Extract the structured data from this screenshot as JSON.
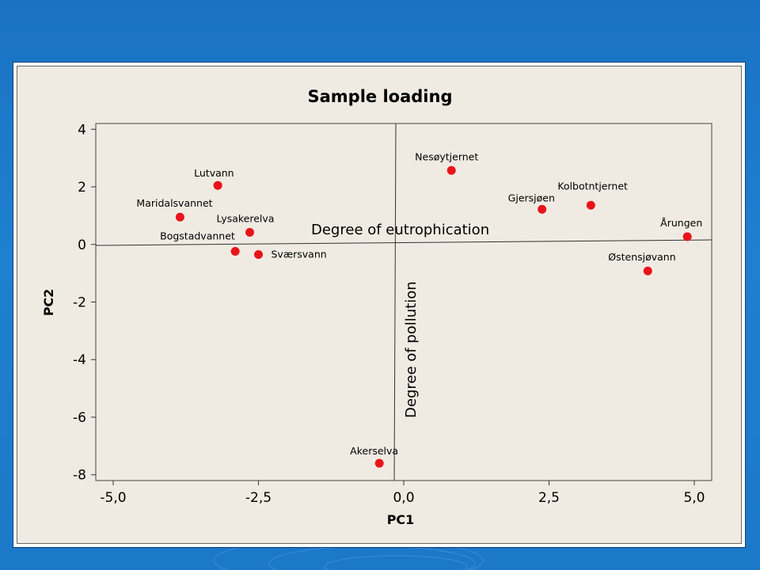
{
  "chart_data": {
    "type": "scatter",
    "title": "Sample loading",
    "xlabel": "PC1",
    "ylabel": "PC2",
    "xlim": [
      -5.3,
      5.3
    ],
    "ylim": [
      -8.2,
      4.2
    ],
    "x_ticks": [
      "-5,0",
      "-2,5",
      "0,0",
      "2,5",
      "5,0"
    ],
    "x_tick_values": [
      -5,
      -2.5,
      0,
      2.5,
      5
    ],
    "y_ticks": [
      "4",
      "2",
      "0",
      "-2",
      "-4",
      "-6",
      "-8"
    ],
    "y_tick_values": [
      4,
      2,
      0,
      -2,
      -4,
      -6,
      -8
    ],
    "grid": false,
    "marker_color": "#e8141a",
    "points": [
      {
        "label": "Lutvann",
        "x": -3.2,
        "y": 2.05
      },
      {
        "label": "Maridalsvannet",
        "x": -3.85,
        "y": 0.95
      },
      {
        "label": "Lysakerelva",
        "x": -2.65,
        "y": 0.42
      },
      {
        "label": "Bogstadvannet",
        "x": -2.9,
        "y": -0.24
      },
      {
        "label": "Sværsvann",
        "x": -2.5,
        "y": -0.35
      },
      {
        "label": "Nesøytjernet",
        "x": 0.82,
        "y": 2.57
      },
      {
        "label": "Gjersjøen",
        "x": 2.38,
        "y": 1.22
      },
      {
        "label": "Kolbotntjernet",
        "x": 3.22,
        "y": 1.36
      },
      {
        "label": "Årungen",
        "x": 4.88,
        "y": 0.27
      },
      {
        "label": "Østensjøvann",
        "x": 4.2,
        "y": -0.92
      },
      {
        "label": "Akerselva",
        "x": -0.42,
        "y": -7.6
      }
    ],
    "annotations": [
      {
        "text": "Degree of eutrophication",
        "orientation": "horizontal"
      },
      {
        "text": "Degree of pollution",
        "orientation": "vertical"
      }
    ]
  }
}
